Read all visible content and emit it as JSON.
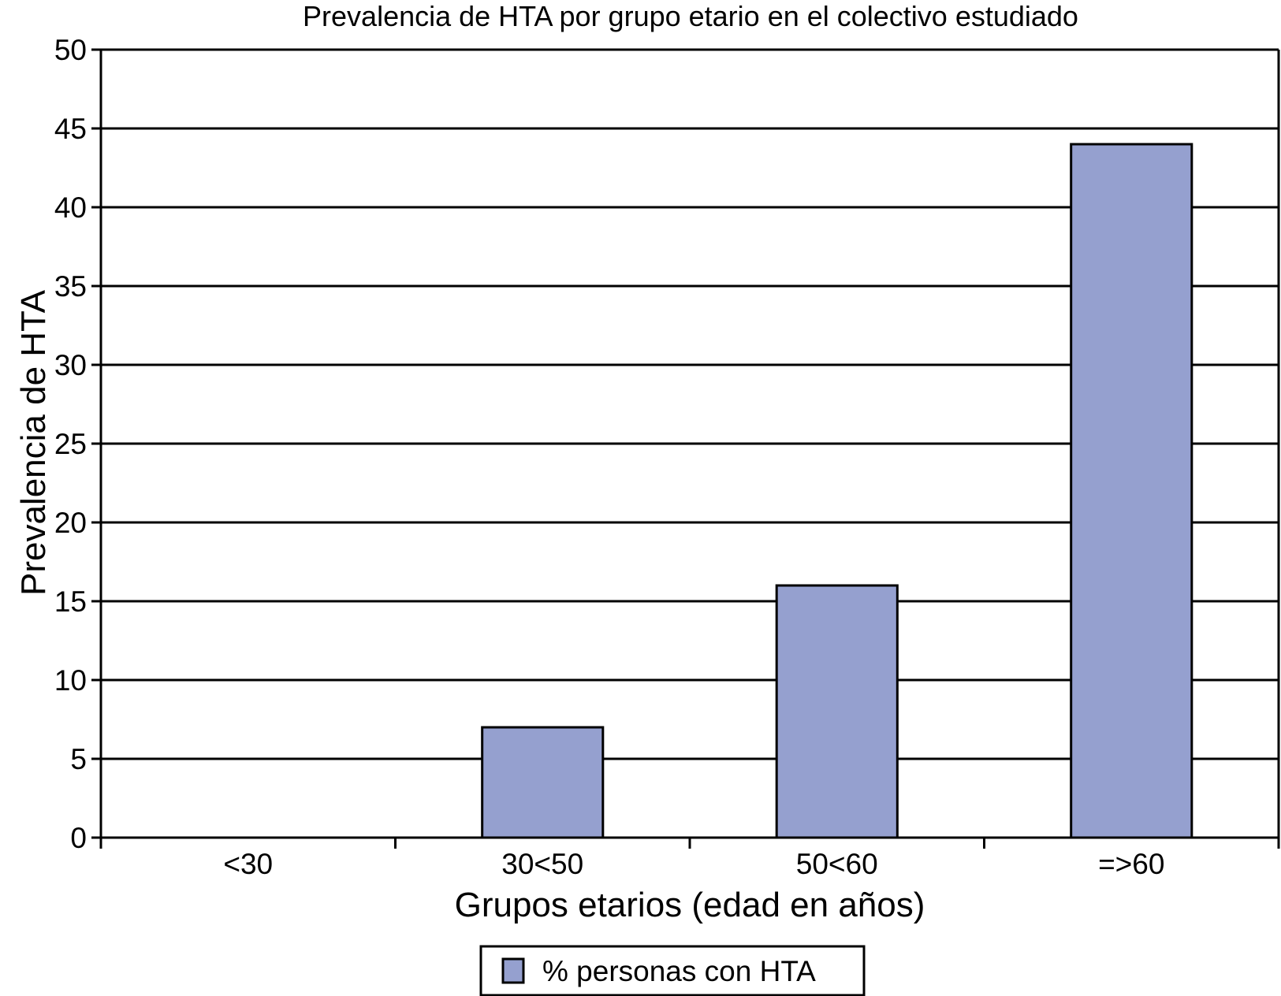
{
  "chart_data": {
    "type": "bar",
    "title": "Prevalencia de HTA por grupo etario en el colectivo estudiado",
    "xlabel": "Grupos etarios (edad en años)",
    "ylabel": "Prevalencia de HTA",
    "categories": [
      "<30",
      "30<50",
      "50<60",
      "=>60"
    ],
    "series": [
      {
        "name": "% personas con HTA",
        "values": [
          0,
          7,
          16,
          44
        ],
        "color": "#95a0cf"
      }
    ],
    "ylim": [
      0,
      50
    ],
    "yticks": [
      0,
      5,
      10,
      15,
      20,
      25,
      30,
      35,
      40,
      45,
      50
    ],
    "grid": true,
    "legend_position": "bottom-center"
  }
}
